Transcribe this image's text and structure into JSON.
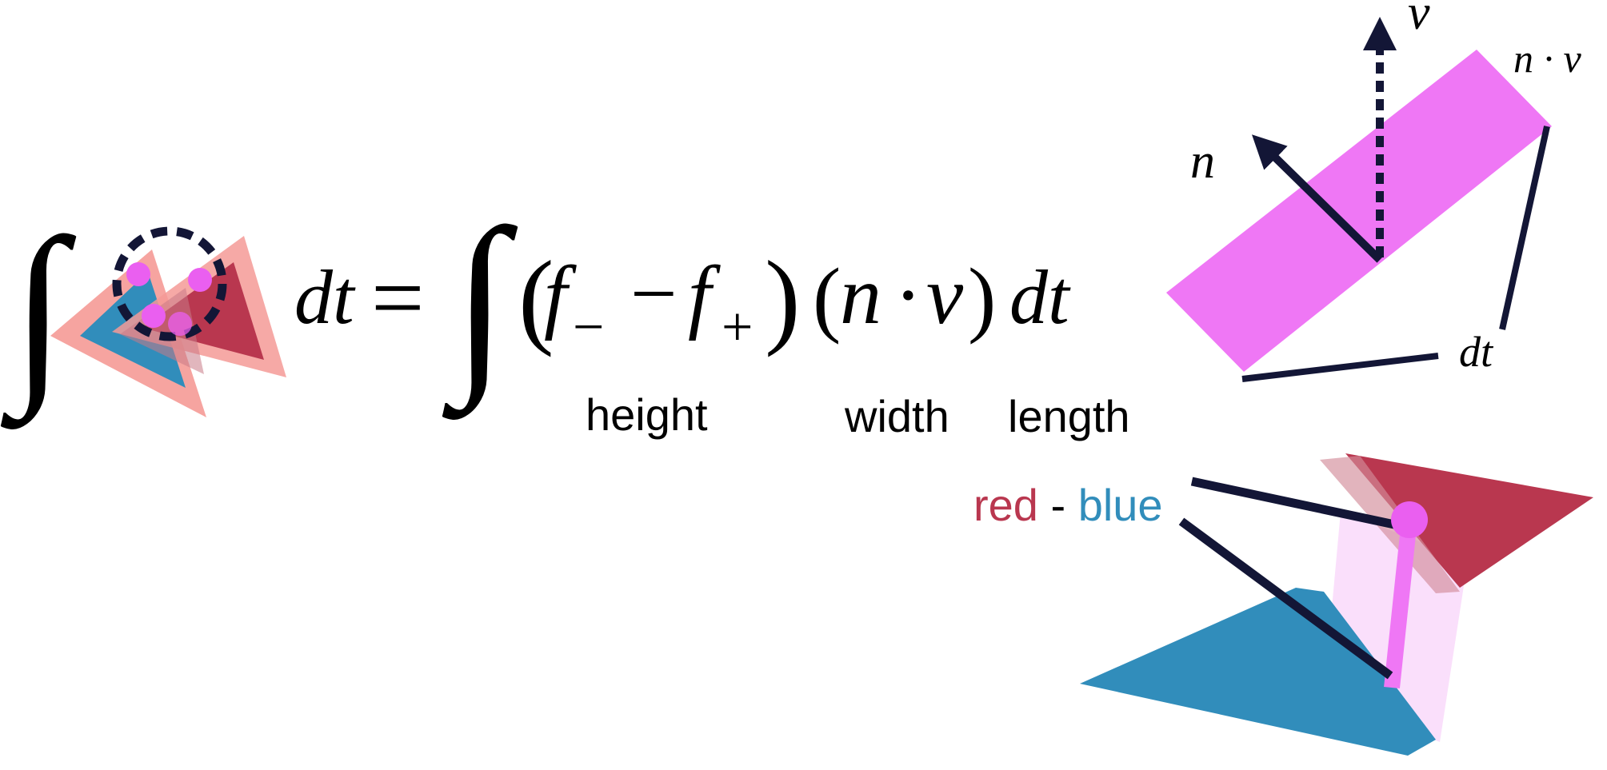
{
  "colors": {
    "red": "#b9374f",
    "blue": "#318dbb",
    "pink": "#ef77f5",
    "dot": "#ea5ff0",
    "salmon": "#f59a96",
    "navy": "#131636"
  },
  "equation": {
    "integral": "∫",
    "dt": "dt",
    "equals": "=",
    "paren_open": "(",
    "f_left": "f",
    "sub_minus": "−",
    "minus": "−",
    "f_right": "f",
    "sub_plus": "+",
    "paren_close": ")",
    "n": "n",
    "dot": "·",
    "v": "v"
  },
  "captions": {
    "height": "height",
    "width": "width",
    "length": "length"
  },
  "strip_labels": {
    "v": "v",
    "n": "n",
    "n_dot_v": "n · v",
    "dt": "dt"
  },
  "legend": {
    "red": "red",
    "sep": " - ",
    "blue": "blue"
  }
}
